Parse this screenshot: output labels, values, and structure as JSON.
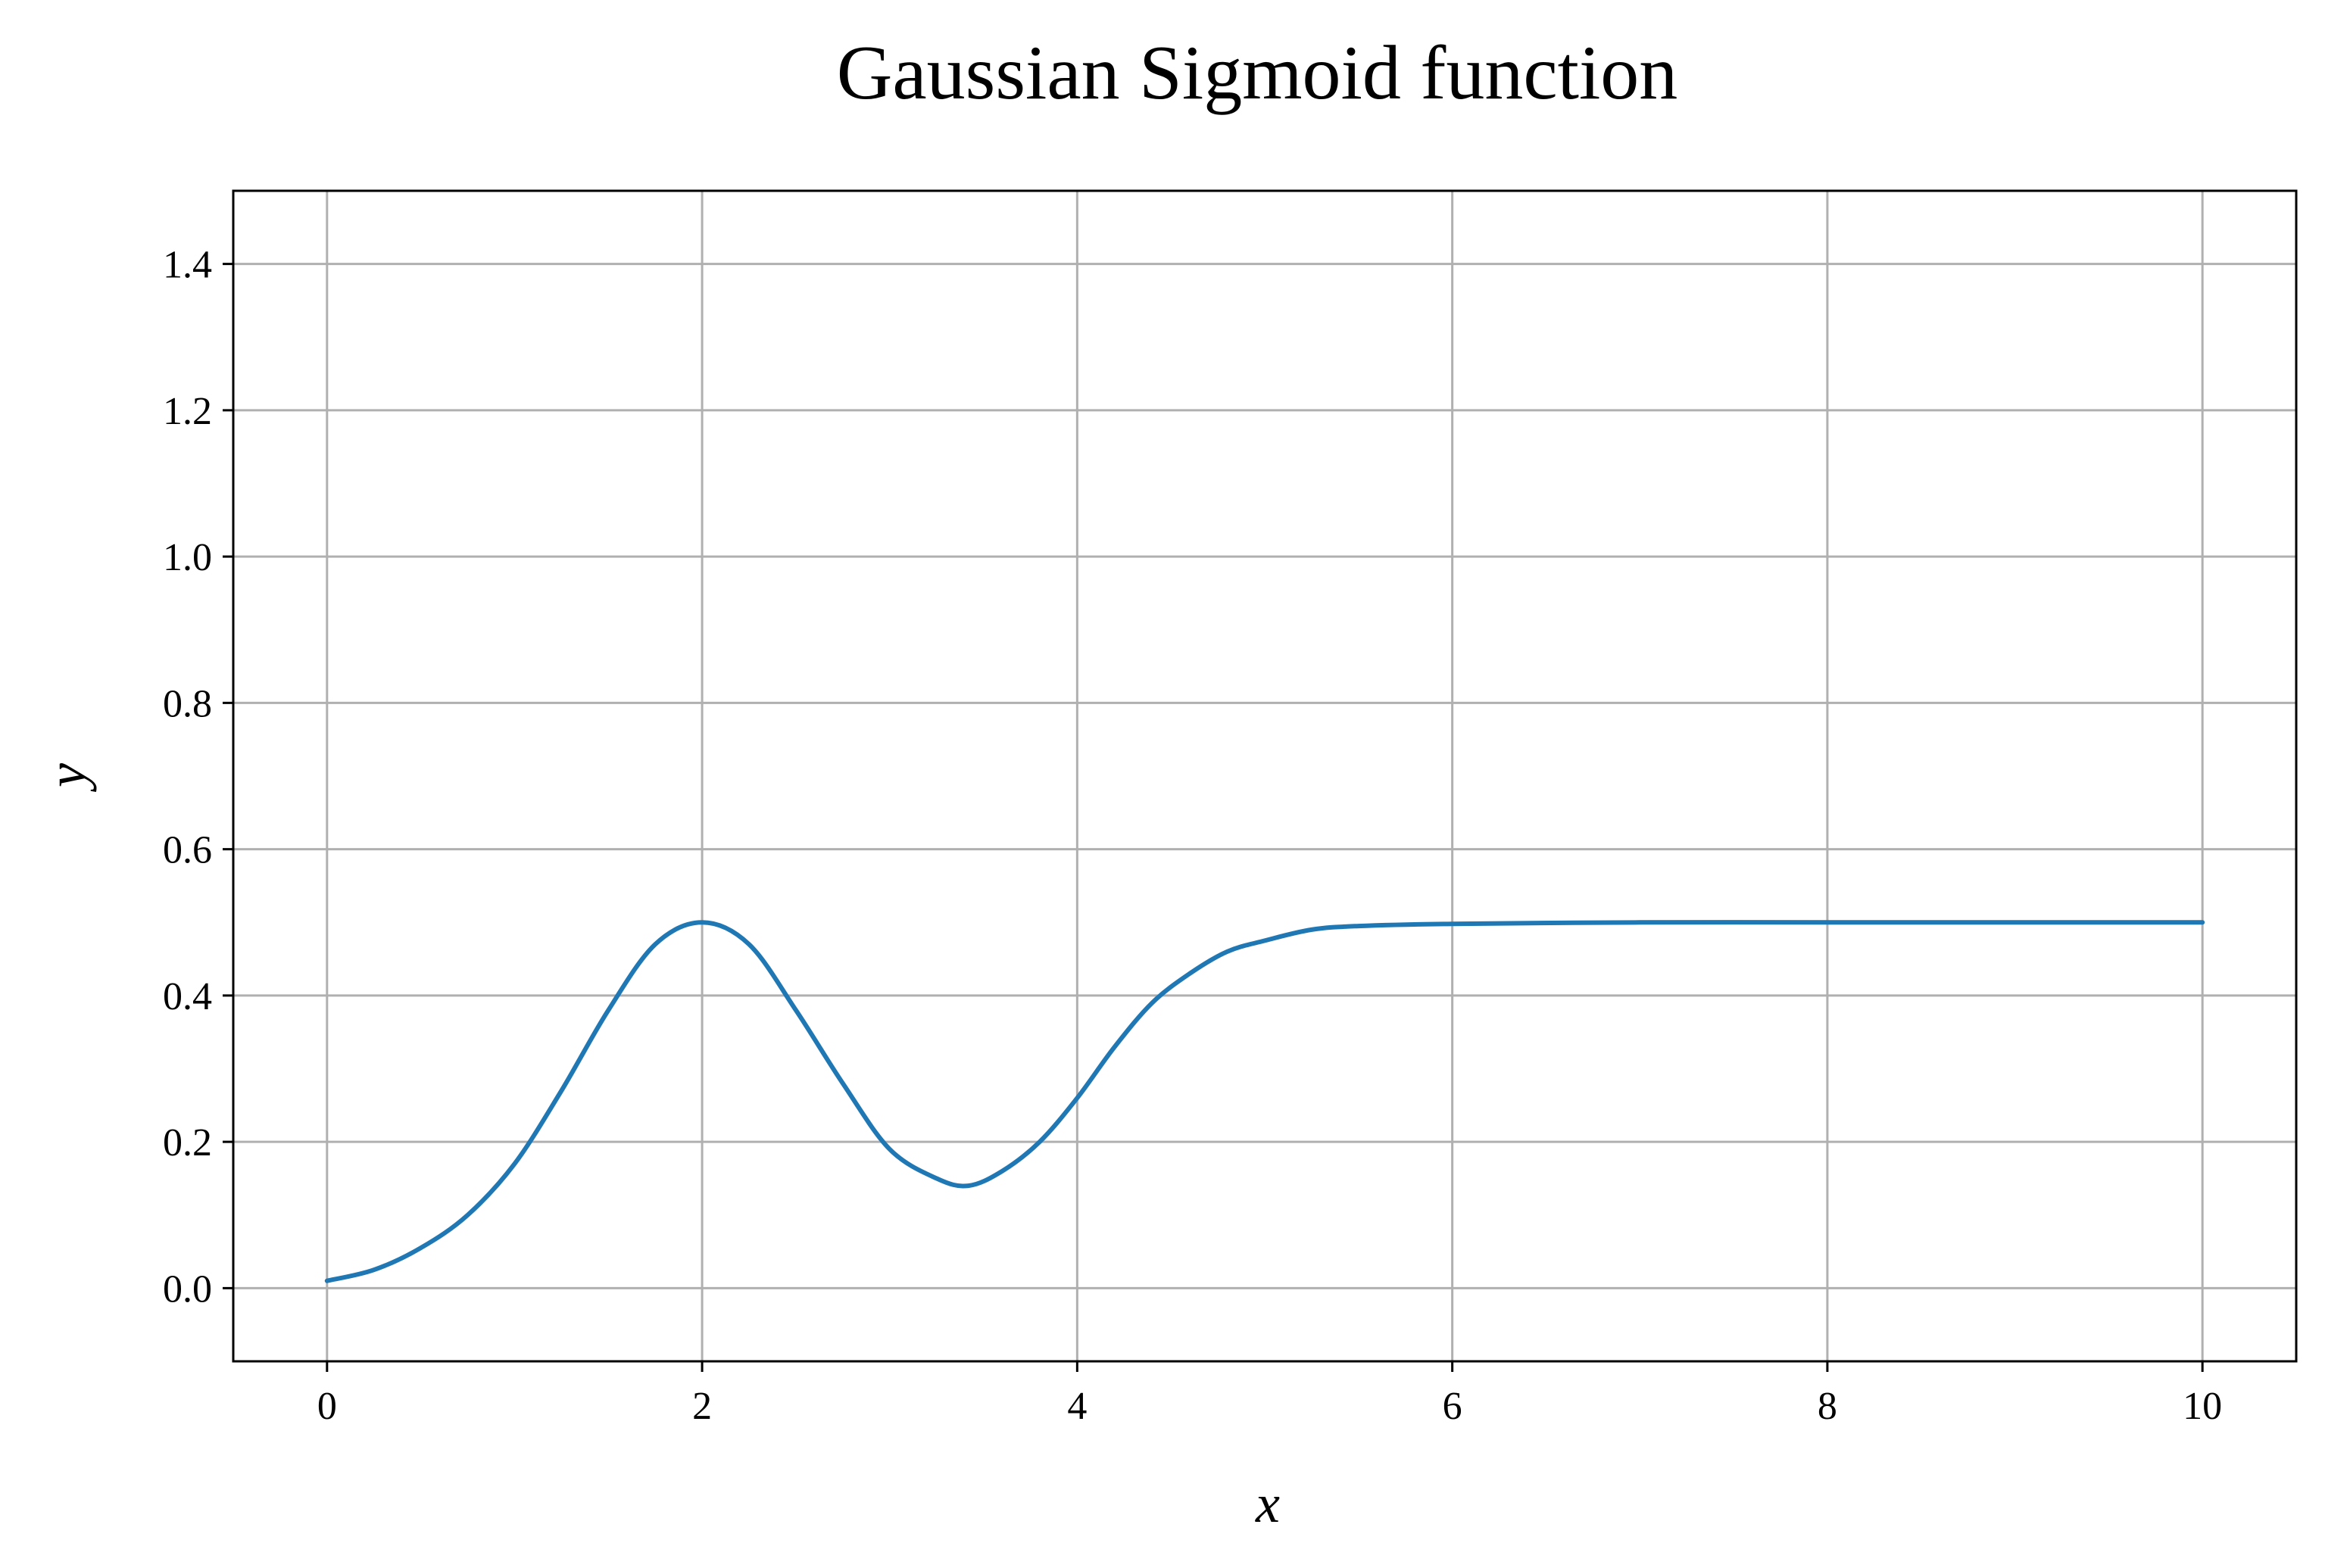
{
  "chart_data": {
    "type": "line",
    "title": "Gaussian Sigmoid function",
    "xlabel": "x",
    "ylabel": "y",
    "xlim": [
      -0.5,
      10.5
    ],
    "ylim": [
      -0.1,
      1.5
    ],
    "x_ticks": [
      "0",
      "2",
      "4",
      "6",
      "8",
      "10"
    ],
    "y_ticks": [
      "0.0",
      "0.2",
      "0.4",
      "0.6",
      "0.8",
      "1.0",
      "1.2",
      "1.4"
    ],
    "grid": true,
    "colors": {
      "series": "#1f77b4",
      "grid": "#b0b0b0",
      "axes": "#000000"
    },
    "series": [
      {
        "x": [
          0,
          0.25,
          0.5,
          0.75,
          1.0,
          1.25,
          1.5,
          1.75,
          2.0,
          2.25,
          2.5,
          2.75,
          3.0,
          3.25,
          3.42,
          3.6,
          3.8,
          4.0,
          4.2,
          4.4,
          4.6,
          4.8,
          5.0,
          5.25,
          5.5,
          6.0,
          7.0,
          8.0,
          9.0,
          10.0
        ],
        "y": [
          0.01,
          0.025,
          0.055,
          0.1,
          0.17,
          0.27,
          0.38,
          0.47,
          0.5,
          0.47,
          0.38,
          0.28,
          0.19,
          0.15,
          0.14,
          0.16,
          0.2,
          0.26,
          0.33,
          0.39,
          0.43,
          0.46,
          0.475,
          0.49,
          0.495,
          0.498,
          0.5,
          0.5,
          0.5,
          0.5
        ]
      }
    ]
  }
}
